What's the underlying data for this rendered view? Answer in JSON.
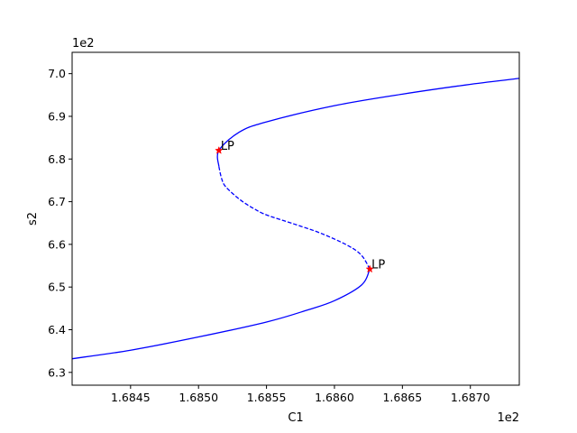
{
  "chart_data": {
    "type": "line",
    "title": "",
    "xlabel": "C1",
    "ylabel": "s2",
    "x_offset_label": "1e2",
    "y_offset_label": "1e2",
    "xlim": [
      1.68407,
      1.68736
    ],
    "ylim": [
      6.27,
      7.05
    ],
    "x_ticks": [
      1.6845,
      1.685,
      1.6855,
      1.686,
      1.6865,
      1.687
    ],
    "x_tick_labels": [
      "1.6845",
      "1.6850",
      "1.6855",
      "1.6860",
      "1.6865",
      "1.6870"
    ],
    "y_ticks": [
      6.3,
      6.4,
      6.5,
      6.6,
      6.7,
      6.8,
      6.9,
      7.0
    ],
    "y_tick_labels": [
      "6.3",
      "6.4",
      "6.5",
      "6.6",
      "6.7",
      "6.8",
      "6.9",
      "7.0"
    ],
    "grid": false,
    "colors": {
      "curve": "#0000ff",
      "marker": "#ff0000"
    },
    "series": [
      {
        "style": "solid",
        "points": [
          [
            1.68407,
            6.332
          ],
          [
            1.6845,
            6.352
          ],
          [
            1.685,
            6.383
          ],
          [
            1.6855,
            6.418
          ],
          [
            1.6858,
            6.446
          ],
          [
            1.686,
            6.468
          ],
          [
            1.6862,
            6.505
          ],
          [
            1.68626,
            6.542
          ]
        ]
      },
      {
        "style": "dashed",
        "points": [
          [
            1.68626,
            6.542
          ],
          [
            1.6862,
            6.574
          ],
          [
            1.6861,
            6.597
          ],
          [
            1.6859,
            6.626
          ],
          [
            1.6857,
            6.648
          ],
          [
            1.6855,
            6.669
          ],
          [
            1.6854,
            6.685
          ],
          [
            1.6853,
            6.706
          ],
          [
            1.6852,
            6.735
          ],
          [
            1.68517,
            6.754
          ],
          [
            1.68515,
            6.782
          ]
        ]
      },
      {
        "style": "solid",
        "points": [
          [
            1.68515,
            6.782
          ],
          [
            1.68515,
            6.82
          ],
          [
            1.6853,
            6.863
          ],
          [
            1.6855,
            6.887
          ],
          [
            1.686,
            6.925
          ],
          [
            1.6865,
            6.952
          ],
          [
            1.687,
            6.975
          ],
          [
            1.68736,
            6.989
          ]
        ]
      }
    ],
    "special_points": [
      {
        "label": "LP",
        "x": 1.68515,
        "y": 6.82
      },
      {
        "label": "LP",
        "x": 1.68626,
        "y": 6.542
      }
    ]
  }
}
